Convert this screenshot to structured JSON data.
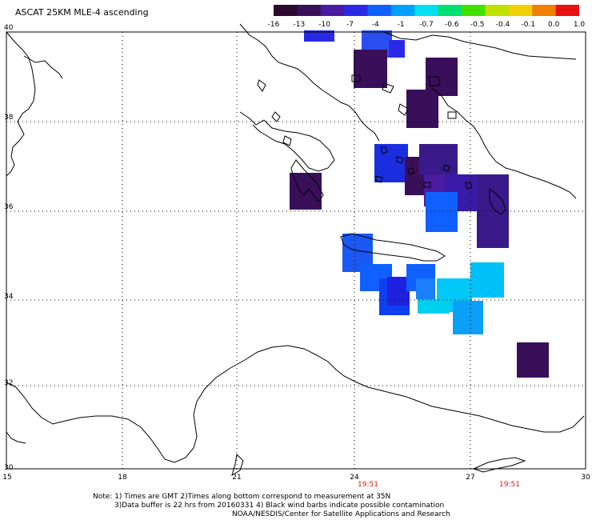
{
  "title": "ASCAT 25KM MLE-4 ascending",
  "colorbar": {
    "labels": [
      "-16",
      "-13",
      "-10",
      "-7",
      "-4",
      "-1",
      "-0.7",
      "-0.6",
      "-0.5",
      "-0.4",
      "-0.1",
      "0.0",
      "1.0"
    ],
    "colors": [
      "#2b0a2e",
      "#3a0f5a",
      "#4a1aa0",
      "#2a2ae6",
      "#1060ff",
      "#00a0ff",
      "#00e0f0",
      "#00e070",
      "#40e000",
      "#c0e000",
      "#f0d000",
      "#f08000",
      "#e81010"
    ]
  },
  "axes": {
    "lat_labels": [
      "40",
      "38",
      "36",
      "34",
      "32",
      "30"
    ],
    "lon_labels": [
      "15",
      "18",
      "21",
      "24",
      "27",
      "30"
    ]
  },
  "times": [
    "19:51",
    "19:51"
  ],
  "notes": [
    "Note: 1) Times are GMT 2)Times along bottom correspond to measurement at 35N",
    "3)Data buffer is 22 hrs from 20160331 4) Black wind barbs indicate possible contamination",
    "NOAA/NESDIS/Center for Satellite Applications and Research"
  ],
  "colors": {
    "background": "#ffffff",
    "coastline": "#000000",
    "grid": "#000000",
    "time_label": "#d81a1a"
  }
}
